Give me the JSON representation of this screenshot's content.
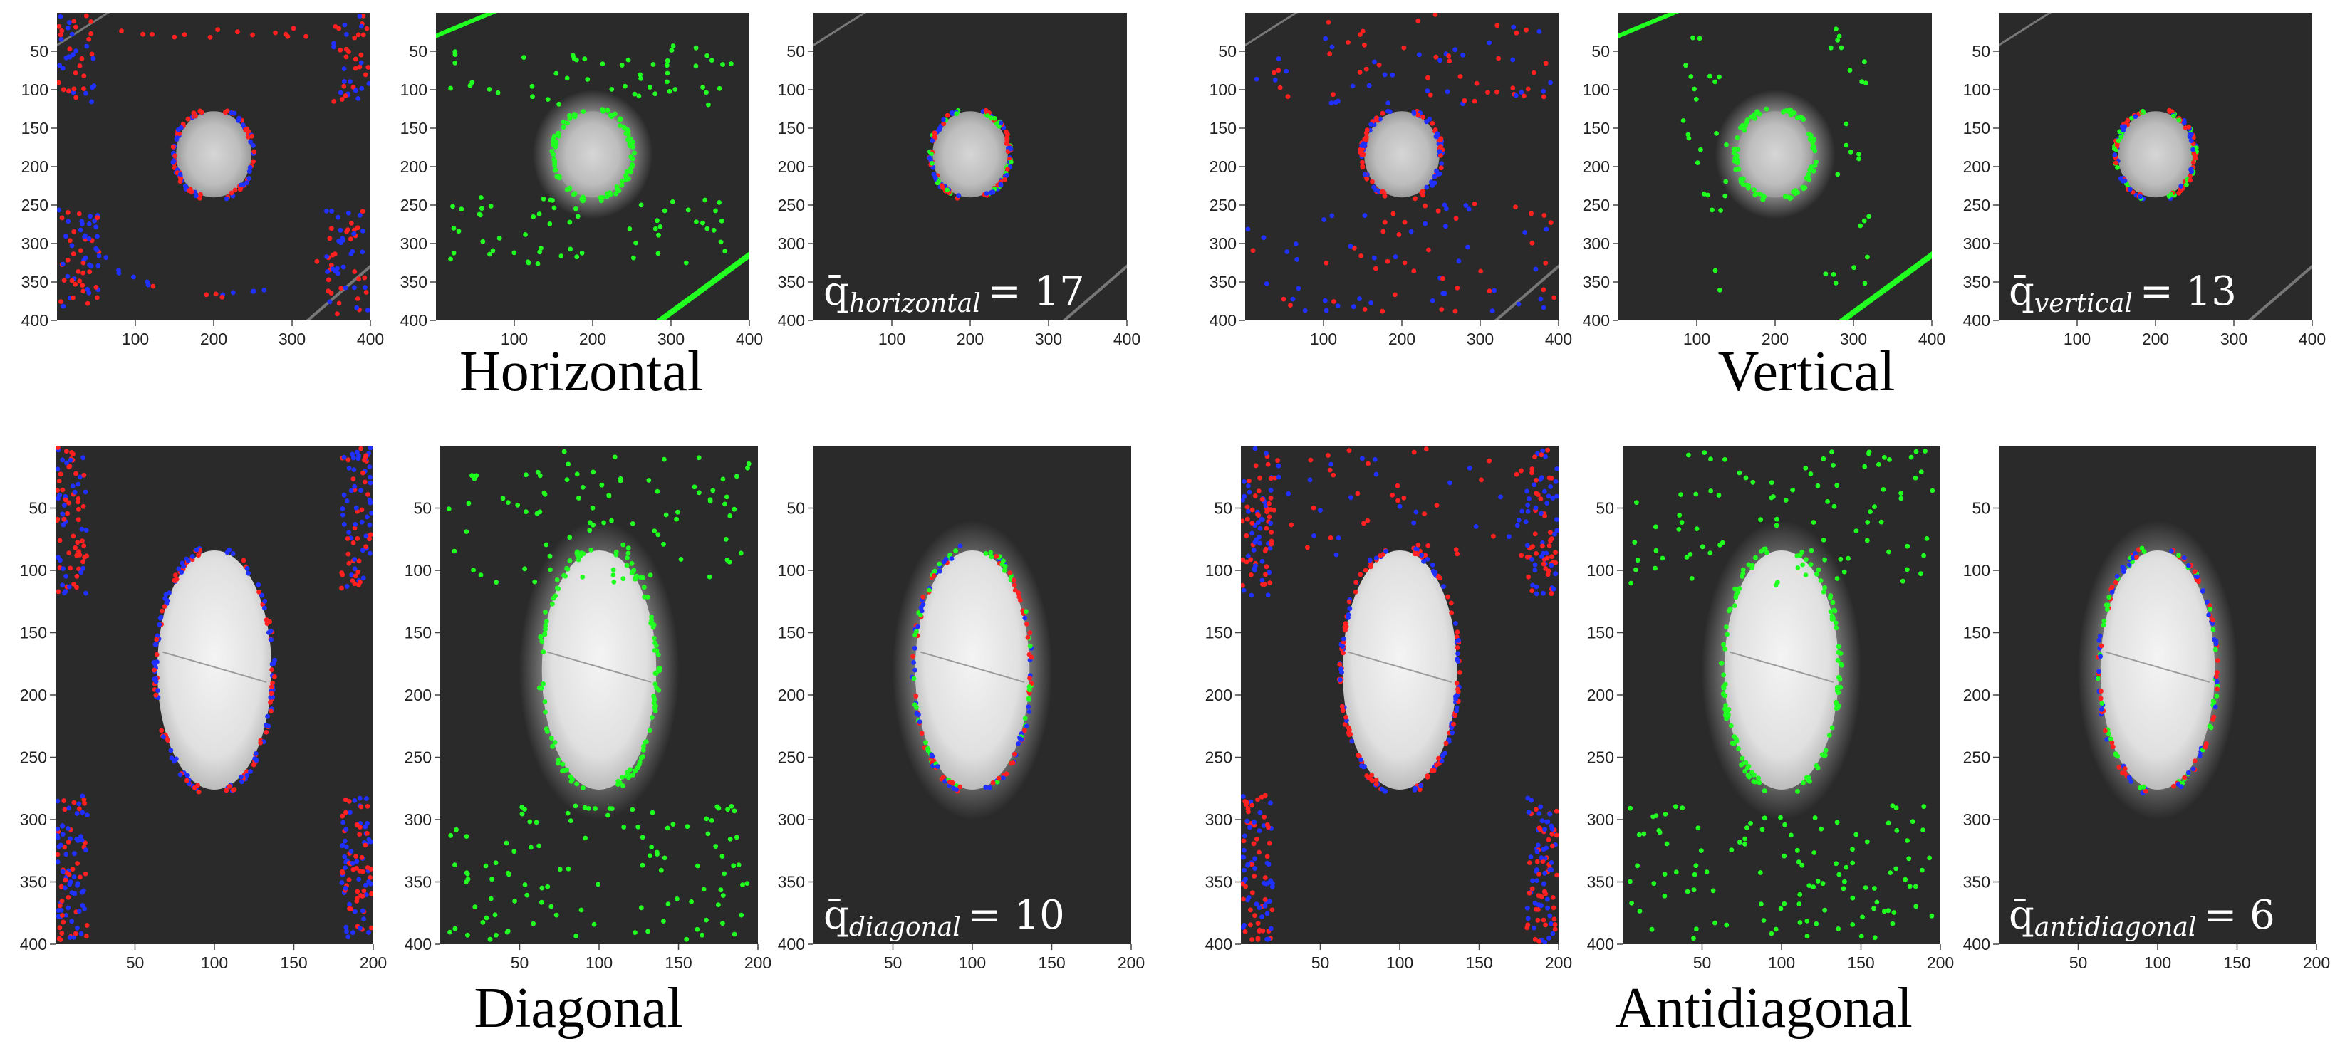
{
  "sections": [
    {
      "label": "Horizontal",
      "q_symbol": "q̄",
      "q_subscript": "horizontal",
      "q_equals": "= 17"
    },
    {
      "label": "Vertical",
      "q_symbol": "q̄",
      "q_subscript": "vertical",
      "q_equals": "= 13"
    },
    {
      "label": "Diagonal",
      "q_symbol": "q̄",
      "q_subscript": "diagonal",
      "q_equals": "= 10"
    },
    {
      "label": "Antidiagonal",
      "q_symbol": "q̄",
      "q_subscript": "antidiagonal",
      "q_equals": "= 6"
    }
  ],
  "colors": {
    "red": "#ff2020",
    "blue": "#2030ff",
    "green": "#20ff20",
    "background": "#2a2a2a",
    "object": "#cfcfcf"
  },
  "chart_data": [
    {
      "type": "scatter",
      "panel": "top-1",
      "xlim": [
        0,
        400
      ],
      "ylim": [
        400,
        0
      ],
      "xticks": [
        "100",
        "200",
        "300",
        "400"
      ],
      "yticks": [
        "50",
        "100",
        "150",
        "200",
        "250",
        "300",
        "350",
        "400"
      ],
      "point_colors": [
        "red",
        "blue"
      ]
    },
    {
      "type": "scatter",
      "panel": "top-2",
      "xlim": [
        0,
        400
      ],
      "ylim": [
        400,
        0
      ],
      "xticks": [
        "100",
        "200",
        "300",
        "400"
      ],
      "yticks": [
        "50",
        "100",
        "150",
        "200",
        "250",
        "300",
        "350",
        "400"
      ],
      "point_colors": [
        "green"
      ]
    },
    {
      "type": "scatter",
      "panel": "top-3",
      "xlim": [
        0,
        400
      ],
      "ylim": [
        400,
        0
      ],
      "xticks": [
        "100",
        "200",
        "300",
        "400"
      ],
      "yticks": [
        "50",
        "100",
        "150",
        "200",
        "250",
        "300",
        "350",
        "400"
      ],
      "point_colors": [
        "red",
        "blue",
        "green"
      ]
    },
    {
      "type": "scatter",
      "panel": "top-4",
      "xlim": [
        0,
        400
      ],
      "ylim": [
        400,
        0
      ],
      "xticks": [
        "100",
        "200",
        "300",
        "400"
      ],
      "yticks": [
        "50",
        "100",
        "150",
        "200",
        "250",
        "300",
        "350",
        "400"
      ],
      "point_colors": [
        "red",
        "blue"
      ]
    },
    {
      "type": "scatter",
      "panel": "top-5",
      "xlim": [
        0,
        400
      ],
      "ylim": [
        400,
        0
      ],
      "xticks": [
        "100",
        "200",
        "300",
        "400"
      ],
      "yticks": [
        "50",
        "100",
        "150",
        "200",
        "250",
        "300",
        "350",
        "400"
      ],
      "point_colors": [
        "green"
      ]
    },
    {
      "type": "scatter",
      "panel": "top-6",
      "xlim": [
        0,
        400
      ],
      "ylim": [
        400,
        0
      ],
      "xticks": [
        "100",
        "200",
        "300",
        "400"
      ],
      "yticks": [
        "50",
        "100",
        "150",
        "200",
        "250",
        "300",
        "350",
        "400"
      ],
      "point_colors": [
        "red",
        "blue",
        "green"
      ]
    },
    {
      "type": "scatter",
      "panel": "bottom-1",
      "xlim": [
        0,
        200
      ],
      "ylim": [
        400,
        0
      ],
      "xticks": [
        "50",
        "100",
        "150",
        "200"
      ],
      "yticks": [
        "50",
        "100",
        "150",
        "200",
        "250",
        "300",
        "350",
        "400"
      ],
      "point_colors": [
        "red",
        "blue"
      ]
    },
    {
      "type": "scatter",
      "panel": "bottom-2",
      "xlim": [
        0,
        200
      ],
      "ylim": [
        400,
        0
      ],
      "xticks": [
        "50",
        "100",
        "150",
        "200"
      ],
      "yticks": [
        "50",
        "100",
        "150",
        "200",
        "250",
        "300",
        "350",
        "400"
      ],
      "point_colors": [
        "green"
      ]
    },
    {
      "type": "scatter",
      "panel": "bottom-3",
      "xlim": [
        0,
        200
      ],
      "ylim": [
        400,
        0
      ],
      "xticks": [
        "50",
        "100",
        "150",
        "200"
      ],
      "yticks": [
        "50",
        "100",
        "150",
        "200",
        "250",
        "300",
        "350",
        "400"
      ],
      "point_colors": [
        "red",
        "blue",
        "green"
      ]
    },
    {
      "type": "scatter",
      "panel": "bottom-4",
      "xlim": [
        0,
        200
      ],
      "ylim": [
        400,
        0
      ],
      "xticks": [
        "50",
        "100",
        "150",
        "200"
      ],
      "yticks": [
        "50",
        "100",
        "150",
        "200",
        "250",
        "300",
        "350",
        "400"
      ],
      "point_colors": [
        "red",
        "blue"
      ]
    },
    {
      "type": "scatter",
      "panel": "bottom-5",
      "xlim": [
        0,
        200
      ],
      "ylim": [
        400,
        0
      ],
      "xticks": [
        "50",
        "100",
        "150",
        "200"
      ],
      "yticks": [
        "50",
        "100",
        "150",
        "200",
        "250",
        "300",
        "350",
        "400"
      ],
      "point_colors": [
        "green"
      ]
    },
    {
      "type": "scatter",
      "panel": "bottom-6",
      "xlim": [
        0,
        200
      ],
      "ylim": [
        400,
        0
      ],
      "xticks": [
        "50",
        "100",
        "150",
        "200"
      ],
      "yticks": [
        "50",
        "100",
        "150",
        "200",
        "250",
        "300",
        "350",
        "400"
      ],
      "point_colors": [
        "red",
        "blue",
        "green"
      ]
    }
  ]
}
